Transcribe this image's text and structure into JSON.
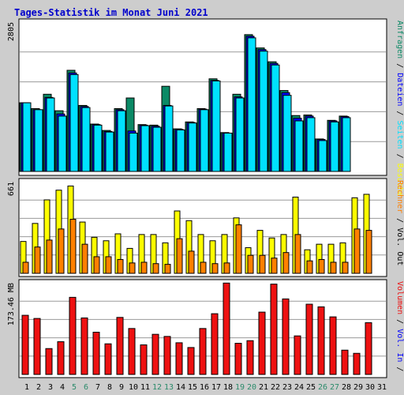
{
  "title": "Tages-Statistik im Monat Juni 2021",
  "colors": {
    "background": "#cdcdcd",
    "plot_bg": "#ffffff",
    "gridline": "#9a9a9a",
    "title": "#0000cc",
    "hits": "#0b8a66",
    "files": "#0000ff",
    "pages": "#00e1ff",
    "visits": "#ffff00",
    "sites": "#ff8000",
    "kbytes": "#ee1111",
    "weekend_label": "#2a8a6a",
    "day_label": "#000000"
  },
  "legend": {
    "top_panel": [
      {
        "text": "Anfragen",
        "color": "#0b8a66"
      },
      {
        "text": " / ",
        "color": "#000000"
      },
      {
        "text": "Dateien",
        "color": "#0000ff"
      },
      {
        "text": " / ",
        "color": "#000000"
      },
      {
        "text": "Seiten",
        "color": "#00e1ff"
      },
      {
        "text": " / ",
        "color": "#000000"
      },
      {
        "text": "Besuche",
        "color": "#ffff00"
      }
    ],
    "middle_panel": [
      {
        "text": "Rechner",
        "color": "#ff8000"
      },
      {
        "text": " / ",
        "color": "#000000"
      },
      {
        "text": "Vol. Out",
        "color": "#000000"
      }
    ],
    "bottom_panel": [
      {
        "text": "Volumen",
        "color": "#ee1111"
      },
      {
        "text": " / ",
        "color": "#000000"
      },
      {
        "text": "Vol. In",
        "color": "#0000ff"
      },
      {
        "text": " / ",
        "color": "#000000"
      }
    ]
  },
  "chart_data": [
    {
      "type": "bar",
      "panel": "top",
      "y_tick_label": "2805",
      "ylim": [
        0,
        2805
      ],
      "grid": true,
      "categories": [
        "1",
        "2",
        "3",
        "4",
        "5",
        "6",
        "7",
        "8",
        "9",
        "10",
        "11",
        "12",
        "13",
        "14",
        "15",
        "16",
        "17",
        "18",
        "19",
        "20",
        "21",
        "22",
        "23",
        "24",
        "25",
        "26",
        "27",
        "28",
        "29",
        "30",
        "31"
      ],
      "series": [
        {
          "name": "Anfragen",
          "color_key": "hits",
          "values": [
            1290,
            1180,
            1450,
            1140,
            1900,
            1240,
            890,
            770,
            1180,
            1380,
            880,
            870,
            1600,
            800,
            930,
            1180,
            1740,
            730,
            1450,
            2570,
            2320,
            2060,
            1520,
            1050,
            1060,
            610,
            960,
            1040,
            null,
            null,
            null
          ]
        },
        {
          "name": "Dateien",
          "color_key": "files",
          "values": [
            1290,
            1160,
            1390,
            1080,
            1850,
            1220,
            880,
            750,
            1160,
            760,
            870,
            850,
            1240,
            790,
            920,
            1170,
            1710,
            720,
            1400,
            2540,
            2290,
            2030,
            1480,
            1000,
            1040,
            600,
            950,
            1030,
            null,
            null,
            null
          ]
        },
        {
          "name": "Seiten",
          "color_key": "pages",
          "values": [
            1290,
            1160,
            1380,
            1040,
            1820,
            1200,
            870,
            740,
            1140,
            720,
            860,
            830,
            1230,
            780,
            910,
            1160,
            1700,
            720,
            1380,
            2510,
            2260,
            2000,
            1430,
            950,
            1010,
            580,
            930,
            1010,
            null,
            null,
            null
          ]
        }
      ]
    },
    {
      "type": "bar",
      "panel": "middle",
      "y_tick_label": "661",
      "ylim": [
        0,
        661
      ],
      "grid": true,
      "categories": [
        "1",
        "2",
        "3",
        "4",
        "5",
        "6",
        "7",
        "8",
        "9",
        "10",
        "11",
        "12",
        "13",
        "14",
        "15",
        "16",
        "17",
        "18",
        "19",
        "20",
        "21",
        "22",
        "23",
        "24",
        "25",
        "26",
        "27",
        "28",
        "29",
        "30",
        "31"
      ],
      "series": [
        {
          "name": "Besuche",
          "color_key": "visits",
          "values": [
            230,
            360,
            530,
            600,
            630,
            370,
            260,
            235,
            285,
            180,
            280,
            280,
            220,
            450,
            380,
            280,
            235,
            280,
            400,
            185,
            310,
            255,
            280,
            550,
            170,
            210,
            210,
            220,
            545,
            570,
            null
          ]
        },
        {
          "name": "Rechner",
          "color_key": "sites",
          "values": [
            80,
            190,
            240,
            320,
            390,
            210,
            120,
            120,
            100,
            75,
            80,
            70,
            65,
            250,
            160,
            80,
            70,
            75,
            350,
            130,
            130,
            110,
            150,
            280,
            90,
            100,
            80,
            80,
            320,
            310,
            null
          ]
        }
      ]
    },
    {
      "type": "bar",
      "panel": "bottom",
      "y_tick_label": "173.46 MB",
      "unit": "MB",
      "ylim": [
        0,
        173.46
      ],
      "grid": true,
      "categories": [
        "1",
        "2",
        "3",
        "4",
        "5",
        "6",
        "7",
        "8",
        "9",
        "10",
        "11",
        "12",
        "13",
        "14",
        "15",
        "16",
        "17",
        "18",
        "19",
        "20",
        "21",
        "22",
        "23",
        "24",
        "25",
        "26",
        "27",
        "28",
        "29",
        "30",
        "31"
      ],
      "series": [
        {
          "name": "Volumen",
          "color_key": "kbytes",
          "values": [
            112,
            106,
            49,
            62,
            146,
            107,
            80,
            58,
            108,
            87,
            56,
            76,
            72,
            60,
            51,
            87,
            115,
            173,
            59,
            64,
            118,
            171,
            143,
            73,
            133,
            128,
            109,
            46,
            40,
            98,
            null
          ]
        }
      ]
    }
  ],
  "x_axis": {
    "labels": [
      "1",
      "2",
      "3",
      "4",
      "5",
      "6",
      "7",
      "8",
      "9",
      "10",
      "11",
      "12",
      "13",
      "14",
      "15",
      "16",
      "17",
      "18",
      "19",
      "20",
      "21",
      "22",
      "23",
      "24",
      "25",
      "26",
      "27",
      "28",
      "29",
      "30",
      "31"
    ],
    "weekend_days": [
      "5",
      "6",
      "12",
      "13",
      "19",
      "20",
      "26",
      "27"
    ]
  }
}
